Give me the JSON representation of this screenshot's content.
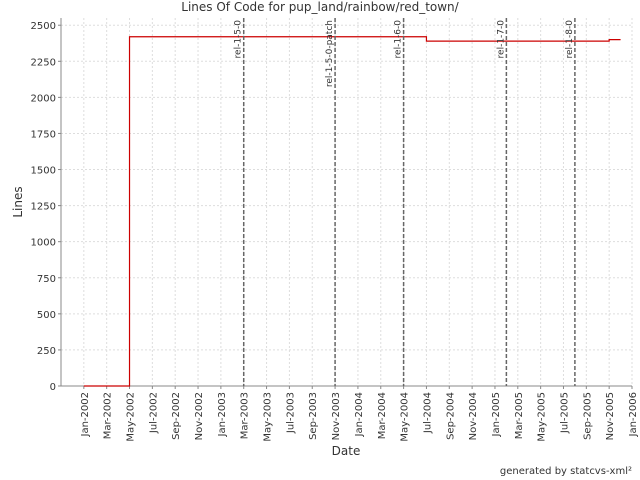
{
  "chart_data": {
    "type": "line",
    "title": "Lines Of Code for pup_land/rainbow/red_town/",
    "x_label": "Date",
    "y_label": "Lines",
    "footer": "generated by statcvs-xml²",
    "x": [
      "2002-01",
      "2002-05",
      "2002-05",
      "2004-07",
      "2004-07",
      "2005-11",
      "2005-11",
      "2005-12"
    ],
    "series": [
      {
        "color": "#cc0000",
        "values": [
          0,
          0,
          2420,
          2420,
          2390,
          2390,
          2400,
          2400
        ]
      }
    ],
    "xlim": [
      "2001-11",
      "2006-01"
    ],
    "xticks": [
      {
        "value": "2002-01",
        "label": "Jan-2002"
      },
      {
        "value": "2002-03",
        "label": "Mar-2002"
      },
      {
        "value": "2002-05",
        "label": "May-2002"
      },
      {
        "value": "2002-07",
        "label": "Jul-2002"
      },
      {
        "value": "2002-09",
        "label": "Sep-2002"
      },
      {
        "value": "2002-11",
        "label": "Nov-2002"
      },
      {
        "value": "2003-01",
        "label": "Jan-2003"
      },
      {
        "value": "2003-03",
        "label": "Mar-2003"
      },
      {
        "value": "2003-05",
        "label": "May-2003"
      },
      {
        "value": "2003-07",
        "label": "Jul-2003"
      },
      {
        "value": "2003-09",
        "label": "Sep-2003"
      },
      {
        "value": "2003-11",
        "label": "Nov-2003"
      },
      {
        "value": "2004-01",
        "label": "Jan-2004"
      },
      {
        "value": "2004-03",
        "label": "Mar-2004"
      },
      {
        "value": "2004-05",
        "label": "May-2004"
      },
      {
        "value": "2004-07",
        "label": "Jul-2004"
      },
      {
        "value": "2004-09",
        "label": "Sep-2004"
      },
      {
        "value": "2004-11",
        "label": "Nov-2004"
      },
      {
        "value": "2005-01",
        "label": "Jan-2005"
      },
      {
        "value": "2005-03",
        "label": "Mar-2005"
      },
      {
        "value": "2005-05",
        "label": "May-2005"
      },
      {
        "value": "2005-07",
        "label": "Jul-2005"
      },
      {
        "value": "2005-09",
        "label": "Sep-2005"
      },
      {
        "value": "2005-11",
        "label": "Nov-2005"
      },
      {
        "value": "2006-01",
        "label": "Jan-2006"
      }
    ],
    "ylim": [
      0,
      2550
    ],
    "yticks": [
      0,
      250,
      500,
      750,
      1000,
      1250,
      1500,
      1750,
      2000,
      2250,
      2500
    ],
    "grid": true,
    "markers": [
      {
        "x": "2003-03",
        "label": "rel-1-5-0"
      },
      {
        "x": "2003-11",
        "label": "rel-1-5-0-patch"
      },
      {
        "x": "2004-05",
        "label": "rel-1-6-0"
      },
      {
        "x": "2005-02",
        "label": "rel-1-7-0"
      },
      {
        "x": "2005-08",
        "label": "rel-1-8-0"
      }
    ]
  }
}
